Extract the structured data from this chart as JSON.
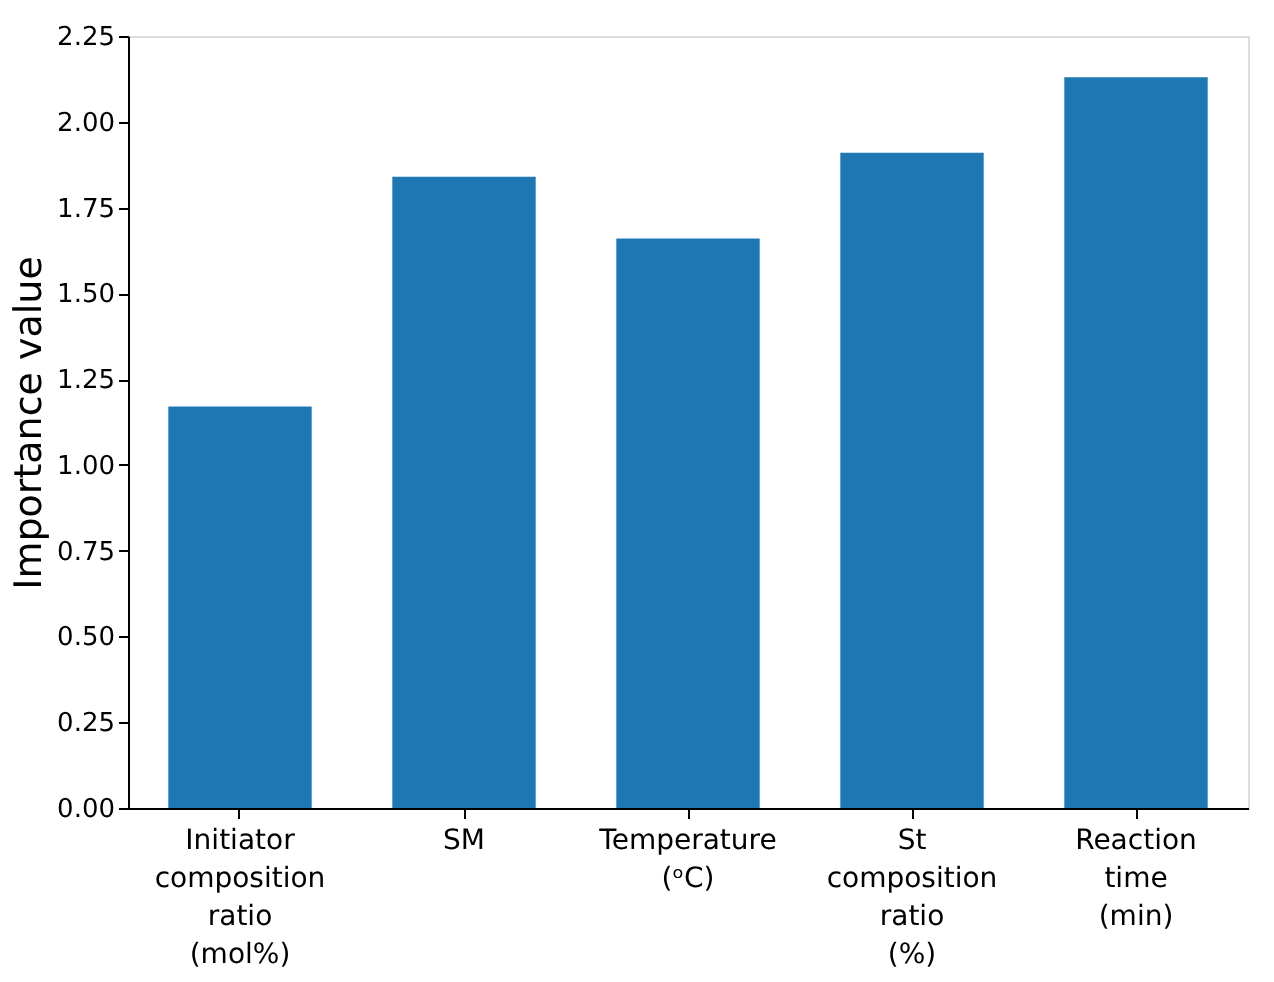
{
  "chart_data": {
    "type": "bar",
    "ylabel": "Importance value",
    "categories": [
      "Initiator\ncomposition\nratio\n(mol%)",
      "SM",
      "Temperature\n(ᵒC)",
      "St\ncomposition\nratio\n(%)",
      "Reaction\ntime\n(min)"
    ],
    "values": [
      1.17,
      1.84,
      1.66,
      1.91,
      2.13
    ],
    "color": "#1f77b4",
    "ylim": [
      0,
      2.25
    ],
    "yticks": [
      {
        "value": 0,
        "label": "0.00"
      },
      0.25,
      {
        "value": 0.5,
        "label": "0.50"
      },
      0.75,
      {
        "value": 1,
        "label": "1.00"
      },
      1.25,
      {
        "value": 1.5,
        "label": "1.50"
      },
      1.75,
      {
        "value": 2,
        "label": "2.00"
      },
      2.25
    ],
    "grid": false
  }
}
